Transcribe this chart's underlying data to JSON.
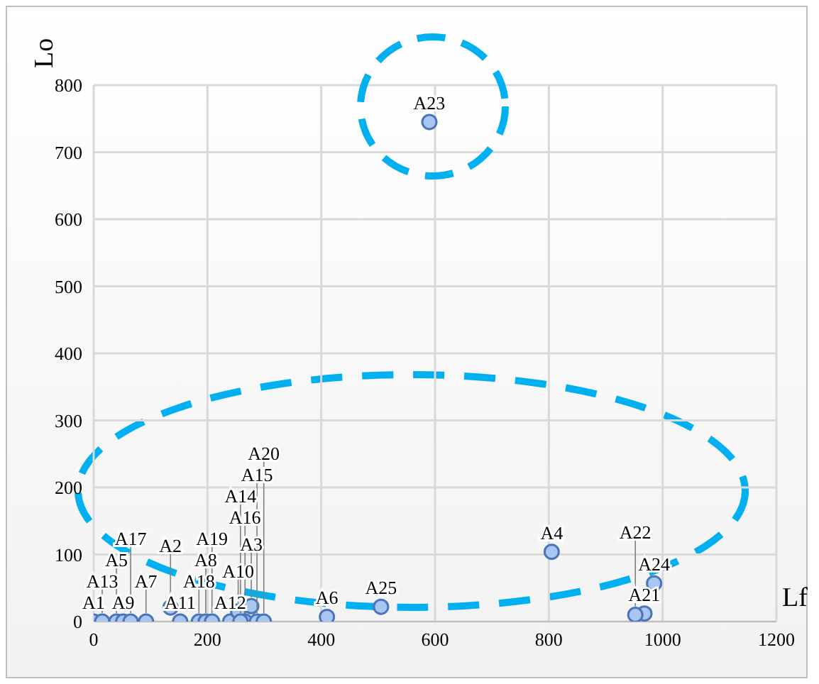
{
  "chart_data": {
    "type": "scatter",
    "xlabel": "Lf",
    "ylabel": "Lo",
    "x": [
      0,
      15,
      40,
      52,
      65,
      92,
      135,
      152,
      185,
      197,
      208,
      240,
      254,
      277,
      266,
      258,
      287,
      299,
      410,
      505,
      805,
      985,
      968,
      952,
      590
    ],
    "series": [
      {
        "color": "#a9c6f2",
        "values": [
          0,
          0,
          0,
          0,
          0,
          0,
          21,
          0,
          0,
          0,
          0,
          0,
          15,
          23,
          0,
          0,
          0,
          0,
          7,
          22,
          104,
          57,
          12,
          10,
          745
        ]
      }
    ],
    "annotations": [
      {
        "text": "A1",
        "x": 0,
        "y": 0
      },
      {
        "text": "A13",
        "x": 15,
        "y": 0
      },
      {
        "text": "A5",
        "x": 40,
        "y": 0
      },
      {
        "text": "A9",
        "x": 52,
        "y": 0
      },
      {
        "text": "A17",
        "x": 65,
        "y": 0
      },
      {
        "text": "A7",
        "x": 92,
        "y": 0
      },
      {
        "text": "A2",
        "x": 135,
        "y": 21
      },
      {
        "text": "A11",
        "x": 152,
        "y": 0
      },
      {
        "text": "A18",
        "x": 185,
        "y": 0
      },
      {
        "text": "A8",
        "x": 197,
        "y": 0
      },
      {
        "text": "A19",
        "x": 208,
        "y": 0
      },
      {
        "text": "A12",
        "x": 240,
        "y": 0
      },
      {
        "text": "A10",
        "x": 254,
        "y": 15
      },
      {
        "text": "A3",
        "x": 277,
        "y": 23
      },
      {
        "text": "A16",
        "x": 266,
        "y": 0
      },
      {
        "text": "A14",
        "x": 258,
        "y": 0
      },
      {
        "text": "A15",
        "x": 287,
        "y": 0
      },
      {
        "text": "A20",
        "x": 299,
        "y": 0
      },
      {
        "text": "A6",
        "x": 410,
        "y": 7
      },
      {
        "text": "A25",
        "x": 505,
        "y": 22
      },
      {
        "text": "A4",
        "x": 805,
        "y": 104
      },
      {
        "text": "A24",
        "x": 985,
        "y": 57
      },
      {
        "text": "A21",
        "x": 968,
        "y": 12
      },
      {
        "text": "A22",
        "x": 952,
        "y": 10
      },
      {
        "text": "A23",
        "x": 590,
        "y": 745
      }
    ],
    "xlim": [
      0,
      1200
    ],
    "xticks": [
      0,
      200,
      400,
      600,
      800,
      1000,
      1200
    ],
    "ylim": [
      0,
      800
    ],
    "yticks": [
      0,
      100,
      200,
      300,
      400,
      500,
      600,
      700,
      800
    ],
    "grid": true,
    "marker": "circle"
  }
}
